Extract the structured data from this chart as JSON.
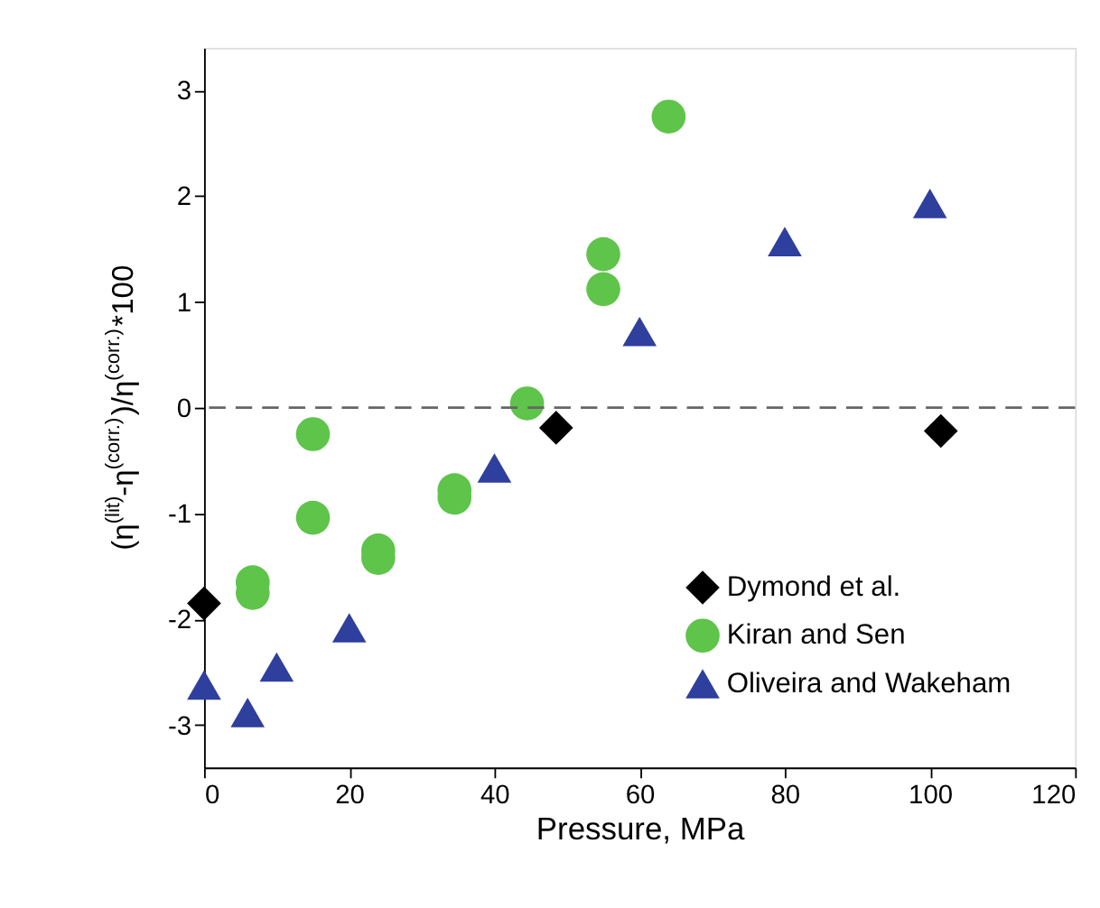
{
  "chart_data": {
    "type": "scatter",
    "xlabel": "Pressure, MPa",
    "ylabel": "(η$^{(lit)}$-η$^{(corr.)}$)/η$^{(corr.)}$*100",
    "xlim": [
      0,
      120
    ],
    "xticks": [
      0,
      20,
      40,
      60,
      80,
      100,
      120
    ],
    "ylim": [
      -3.4,
      3.4
    ],
    "yticks": [
      -3,
      -2,
      -1,
      0,
      1,
      2,
      3
    ],
    "grid": false,
    "legend": "bottom right",
    "ref_lines": [
      {
        "axis": "y",
        "value": 0,
        "color": "#666666",
        "line_style": "dashed"
      }
    ],
    "series": [
      {
        "name": "Dymond et al.",
        "color": "#000000",
        "marker": "diamond",
        "x": [
          0,
          48.5,
          101.5
        ],
        "values": [
          -1.85,
          -0.19,
          -0.22
        ]
      },
      {
        "name": "Kiran and Sen",
        "color": "#5ec44a",
        "marker": "circle",
        "x": [
          6.7,
          6.7,
          15,
          15,
          24,
          24,
          34.5,
          34.5,
          44.5,
          55,
          55,
          64
        ],
        "values": [
          -1.65,
          -1.75,
          -0.25,
          -1.04,
          -1.35,
          -1.42,
          -0.78,
          -0.85,
          0.04,
          1.45,
          1.12,
          2.75
        ]
      },
      {
        "name": "Oliveira and Wakeham",
        "color": "#2e3f9e",
        "marker": "triangle",
        "x": [
          0,
          6,
          10,
          20,
          40,
          60,
          80,
          100
        ],
        "values": [
          -2.62,
          -2.88,
          -2.45,
          -2.08,
          -0.57,
          0.72,
          1.57,
          1.93
        ]
      }
    ]
  }
}
